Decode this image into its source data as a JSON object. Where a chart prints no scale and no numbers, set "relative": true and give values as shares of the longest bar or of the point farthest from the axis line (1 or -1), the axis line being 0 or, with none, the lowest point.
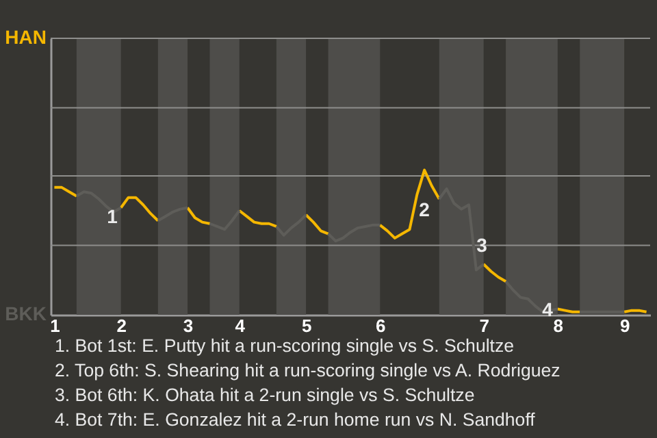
{
  "chart_data": {
    "type": "line",
    "relative": true,
    "ref_lines": [
      {
        "axis": "y",
        "value": 0.48,
        "color": "#8e8e8c"
      },
      {
        "axis": "y",
        "value": 0.96,
        "color": "#8e8e8c"
      },
      {
        "axis": "y",
        "value": 1.43,
        "color": "#8e8e8c"
      },
      {
        "axis": "y",
        "value": 1.91,
        "color": "#8e8e8c"
      }
    ],
    "categories": [
      "1",
      null,
      null,
      null,
      null,
      null,
      null,
      null,
      null,
      "2",
      null,
      null,
      null,
      null,
      null,
      null,
      null,
      null,
      "3",
      null,
      null,
      null,
      null,
      null,
      null,
      "4",
      null,
      null,
      null,
      null,
      null,
      null,
      null,
      null,
      "5",
      null,
      null,
      null,
      null,
      null,
      null,
      null,
      null,
      null,
      "6",
      null,
      null,
      null,
      null,
      null,
      null,
      null,
      null,
      null,
      null,
      null,
      null,
      null,
      "7",
      null,
      null,
      null,
      null,
      null,
      null,
      null,
      null,
      null,
      "8",
      null,
      null,
      null,
      null,
      null,
      null,
      null,
      null,
      "9",
      null,
      null,
      null
    ],
    "series": [
      {
        "name": "HAN",
        "color": "#f5b700",
        "values": [
          0.88,
          0.88,
          0.85,
          0.82,
          null,
          null,
          null,
          null,
          null,
          0.74,
          0.81,
          0.81,
          0.76,
          0.7,
          0.65,
          null,
          null,
          null,
          0.74,
          0.67,
          0.64,
          0.63,
          null,
          null,
          null,
          0.72,
          0.68,
          0.64,
          0.63,
          0.63,
          0.61,
          null,
          null,
          null,
          0.69,
          0.64,
          0.58,
          0.56,
          null,
          null,
          null,
          null,
          null,
          null,
          0.62,
          0.58,
          0.53,
          0.56,
          0.59,
          0.83,
          1.0,
          0.89,
          0.8,
          null,
          null,
          null,
          null,
          null,
          0.35,
          0.3,
          0.26,
          0.23,
          null,
          null,
          null,
          null,
          null,
          null,
          0.04,
          0.03,
          0.02,
          0.02,
          null,
          null,
          null,
          null,
          null,
          0.02,
          0.03,
          0.03,
          0.02
        ]
      },
      {
        "name": "BKK",
        "color": "#5e5d59",
        "values": [
          null,
          null,
          null,
          0.82,
          0.85,
          0.84,
          0.8,
          0.75,
          0.71,
          0.74,
          null,
          null,
          null,
          null,
          0.65,
          0.68,
          0.71,
          0.73,
          0.74,
          null,
          null,
          0.63,
          0.61,
          0.59,
          0.65,
          0.72,
          null,
          null,
          null,
          null,
          0.61,
          0.55,
          0.6,
          0.64,
          0.69,
          null,
          null,
          0.56,
          0.51,
          0.53,
          0.57,
          0.6,
          0.61,
          0.62,
          0.62,
          null,
          null,
          null,
          null,
          null,
          null,
          null,
          0.8,
          0.87,
          0.77,
          0.73,
          0.76,
          0.31,
          0.35,
          null,
          null,
          0.23,
          0.17,
          0.12,
          0.11,
          0.06,
          0.02,
          0.03,
          0.04,
          null,
          null,
          0.02,
          0.02,
          0.02,
          0.02,
          0.02,
          0.02,
          0.02,
          null,
          null,
          null
        ]
      }
    ],
    "annotations": [
      "1",
      "2",
      "3",
      "4",
      "1. Bot 1st: E. Putty hit a run-scoring single vs S. Schultze",
      "2. Top 6th: S. Shearing hit a run-scoring single vs A. Rodriguez",
      "3. Bot 6th: K. Ohata hit a 2-run single vs S. Schultze",
      "4. Bot 7th: E. Gonzalez hit a 2-run home run vs N. Sandhoff"
    ]
  }
}
